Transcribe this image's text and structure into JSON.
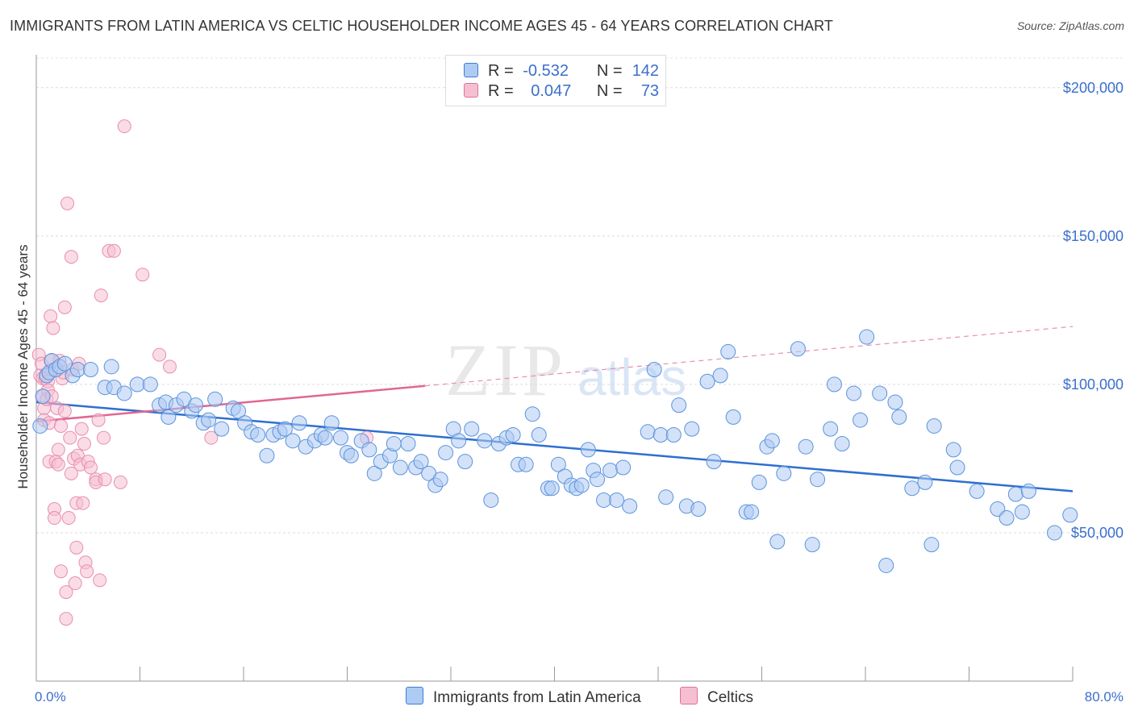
{
  "title": "IMMIGRANTS FROM LATIN AMERICA VS CELTIC HOUSEHOLDER INCOME AGES 45 - 64 YEARS CORRELATION CHART",
  "source": "Source: ZipAtlas.com",
  "watermark": {
    "zip": "ZIP",
    "atlas": "atlas"
  },
  "colors": {
    "blue": "#3b7dd8",
    "blue_fill": "#aecbf3",
    "pink": "#e0709a",
    "pink_fill": "#f6bfd1",
    "tick_label": "#3b6fcc"
  },
  "legend": {
    "rows": [
      {
        "r_label": "R =",
        "r_value": "-0.532",
        "n_label": "N =",
        "n_value": "142"
      },
      {
        "r_label": "R =",
        "r_value": "0.047",
        "n_label": "N =",
        "n_value": "73"
      }
    ]
  },
  "chart_data": {
    "type": "scatter",
    "ylabel": "Householder Income Ages 45 - 64 years",
    "xlabel": "",
    "xlim": [
      0,
      80
    ],
    "ylim": [
      0,
      210000
    ],
    "x_tick_labels": [
      "0.0%",
      "80.0%"
    ],
    "y_ticks": [
      50000,
      100000,
      150000,
      200000
    ],
    "y_tick_labels": [
      "$50,000",
      "$100,000",
      "$150,000",
      "$200,000"
    ],
    "grid": "horizontal dashed",
    "series": [
      {
        "name": "Immigrants from Latin America",
        "color": "#3b7dd8",
        "trend": {
          "x": [
            0,
            80
          ],
          "y": [
            94000,
            64000
          ]
        },
        "points": [
          [
            0.3,
            86
          ],
          [
            0.5,
            96
          ],
          [
            0.8,
            103
          ],
          [
            1.0,
            104
          ],
          [
            1.2,
            108
          ],
          [
            1.5,
            105
          ],
          [
            1.8,
            106
          ],
          [
            2.2,
            107
          ],
          [
            2.8,
            103
          ],
          [
            3.2,
            105
          ],
          [
            4.2,
            105
          ],
          [
            5.3,
            99
          ],
          [
            5.8,
            106
          ],
          [
            6.0,
            99
          ],
          [
            6.8,
            97
          ],
          [
            7.8,
            100
          ],
          [
            8.8,
            100
          ],
          [
            9.5,
            93
          ],
          [
            10.0,
            94
          ],
          [
            10.2,
            89
          ],
          [
            10.8,
            93
          ],
          [
            11.4,
            95
          ],
          [
            12.0,
            91
          ],
          [
            12.3,
            93
          ],
          [
            12.9,
            87
          ],
          [
            13.3,
            88
          ],
          [
            13.8,
            95
          ],
          [
            14.3,
            85
          ],
          [
            15.2,
            92
          ],
          [
            15.6,
            91
          ],
          [
            16.1,
            87
          ],
          [
            16.6,
            84
          ],
          [
            17.1,
            83
          ],
          [
            17.8,
            76
          ],
          [
            18.3,
            83
          ],
          [
            18.8,
            84
          ],
          [
            19.2,
            85
          ],
          [
            19.8,
            81
          ],
          [
            20.3,
            87
          ],
          [
            20.8,
            79
          ],
          [
            21.5,
            81
          ],
          [
            22.0,
            83
          ],
          [
            22.3,
            82
          ],
          [
            22.8,
            87
          ],
          [
            23.5,
            82
          ],
          [
            24.0,
            77
          ],
          [
            24.3,
            76
          ],
          [
            25.1,
            81
          ],
          [
            25.7,
            78
          ],
          [
            26.1,
            70
          ],
          [
            26.6,
            74
          ],
          [
            27.3,
            76
          ],
          [
            27.6,
            80
          ],
          [
            28.1,
            72
          ],
          [
            28.7,
            80
          ],
          [
            29.3,
            72
          ],
          [
            29.7,
            74
          ],
          [
            30.3,
            70
          ],
          [
            30.8,
            66
          ],
          [
            31.2,
            68
          ],
          [
            31.6,
            77
          ],
          [
            32.2,
            85
          ],
          [
            32.6,
            81
          ],
          [
            33.1,
            74
          ],
          [
            33.6,
            85
          ],
          [
            34.6,
            81
          ],
          [
            35.1,
            61
          ],
          [
            35.7,
            80
          ],
          [
            36.3,
            82
          ],
          [
            36.8,
            83
          ],
          [
            37.2,
            73
          ],
          [
            37.8,
            73
          ],
          [
            38.3,
            90
          ],
          [
            38.8,
            83
          ],
          [
            39.5,
            65
          ],
          [
            39.8,
            65
          ],
          [
            40.3,
            73
          ],
          [
            40.8,
            69
          ],
          [
            41.3,
            66
          ],
          [
            41.7,
            65
          ],
          [
            42.1,
            66
          ],
          [
            42.6,
            78
          ],
          [
            43.0,
            71
          ],
          [
            43.3,
            68
          ],
          [
            43.8,
            61
          ],
          [
            44.3,
            71
          ],
          [
            44.8,
            61
          ],
          [
            45.3,
            72
          ],
          [
            45.8,
            59
          ],
          [
            47.2,
            84
          ],
          [
            47.7,
            105
          ],
          [
            48.2,
            83
          ],
          [
            48.6,
            62
          ],
          [
            49.2,
            83
          ],
          [
            49.6,
            93
          ],
          [
            50.2,
            59
          ],
          [
            50.6,
            85
          ],
          [
            51.1,
            58
          ],
          [
            51.8,
            101
          ],
          [
            52.3,
            74
          ],
          [
            52.8,
            103
          ],
          [
            53.4,
            111
          ],
          [
            53.8,
            89
          ],
          [
            54.8,
            57
          ],
          [
            55.2,
            57
          ],
          [
            55.8,
            67
          ],
          [
            56.4,
            79
          ],
          [
            56.8,
            81
          ],
          [
            57.2,
            47
          ],
          [
            57.7,
            70
          ],
          [
            58.8,
            112
          ],
          [
            59.4,
            79
          ],
          [
            59.9,
            46
          ],
          [
            60.3,
            68
          ],
          [
            61.3,
            85
          ],
          [
            61.6,
            100
          ],
          [
            62.2,
            80
          ],
          [
            63.1,
            97
          ],
          [
            63.6,
            88
          ],
          [
            64.1,
            116
          ],
          [
            65.1,
            97
          ],
          [
            65.6,
            39
          ],
          [
            66.3,
            94
          ],
          [
            66.6,
            89
          ],
          [
            67.6,
            65
          ],
          [
            68.6,
            67
          ],
          [
            69.1,
            46
          ],
          [
            69.3,
            86
          ],
          [
            70.8,
            78
          ],
          [
            71.1,
            72
          ],
          [
            72.6,
            64
          ],
          [
            74.2,
            58
          ],
          [
            74.9,
            55
          ],
          [
            75.6,
            63
          ],
          [
            76.1,
            57
          ],
          [
            76.6,
            64
          ],
          [
            78.6,
            50
          ],
          [
            79.8,
            56
          ]
        ]
      },
      {
        "name": "Celtics",
        "color": "#e0709a",
        "trend": {
          "x": [
            0,
            30
          ],
          "y": [
            87500,
            99500
          ]
        },
        "trend_dashed": {
          "x": [
            30,
            80
          ],
          "y": [
            99500,
            119500
          ]
        },
        "points": [
          [
            0.2,
            110
          ],
          [
            0.3,
            103
          ],
          [
            0.4,
            107
          ],
          [
            0.5,
            102
          ],
          [
            0.5,
            96
          ],
          [
            0.6,
            92
          ],
          [
            0.6,
            88
          ],
          [
            0.7,
            102
          ],
          [
            0.8,
            95
          ],
          [
            0.9,
            101
          ],
          [
            0.9,
            98
          ],
          [
            1.0,
            87
          ],
          [
            1.0,
            74
          ],
          [
            1.1,
            123
          ],
          [
            1.1,
            108
          ],
          [
            1.2,
            105
          ],
          [
            1.2,
            96
          ],
          [
            1.3,
            119
          ],
          [
            1.4,
            58
          ],
          [
            1.4,
            55
          ],
          [
            1.5,
            74
          ],
          [
            1.6,
            92
          ],
          [
            1.7,
            78
          ],
          [
            1.7,
            73
          ],
          [
            1.8,
            108
          ],
          [
            1.9,
            37
          ],
          [
            1.9,
            86
          ],
          [
            2.0,
            102
          ],
          [
            2.1,
            104
          ],
          [
            2.2,
            126
          ],
          [
            2.2,
            91
          ],
          [
            2.3,
            30
          ],
          [
            2.3,
            21
          ],
          [
            2.4,
            161
          ],
          [
            2.5,
            55
          ],
          [
            2.6,
            82
          ],
          [
            2.7,
            143
          ],
          [
            2.7,
            70
          ],
          [
            2.8,
            105
          ],
          [
            2.9,
            75
          ],
          [
            3.0,
            33
          ],
          [
            3.1,
            60
          ],
          [
            3.1,
            45
          ],
          [
            3.2,
            76
          ],
          [
            3.3,
            107
          ],
          [
            3.4,
            73
          ],
          [
            3.5,
            85
          ],
          [
            3.6,
            60
          ],
          [
            3.7,
            80
          ],
          [
            3.8,
            40
          ],
          [
            3.9,
            37
          ],
          [
            4.0,
            74
          ],
          [
            4.2,
            72
          ],
          [
            4.6,
            68
          ],
          [
            4.6,
            67
          ],
          [
            4.8,
            88
          ],
          [
            4.9,
            34
          ],
          [
            5.0,
            130
          ],
          [
            5.2,
            82
          ],
          [
            5.3,
            68
          ],
          [
            5.6,
            145
          ],
          [
            6.0,
            145
          ],
          [
            6.5,
            67
          ],
          [
            6.8,
            187
          ],
          [
            8.2,
            137
          ],
          [
            9.5,
            110
          ],
          [
            10.3,
            106
          ],
          [
            13.5,
            82
          ],
          [
            25.5,
            82
          ]
        ]
      }
    ]
  },
  "bottom_legend": [
    {
      "label": "Immigrants from Latin America"
    },
    {
      "label": "Celtics"
    }
  ]
}
